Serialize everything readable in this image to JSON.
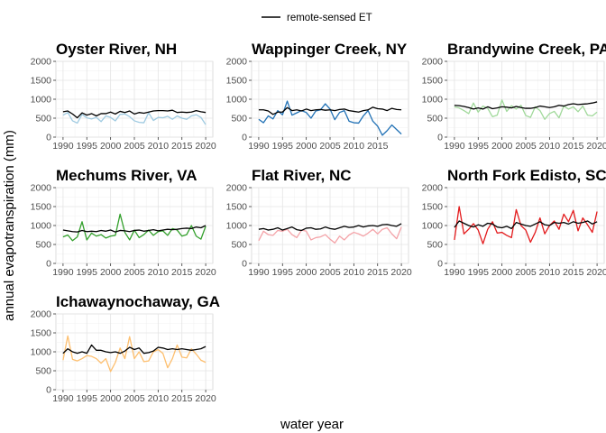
{
  "chart_data": {
    "type": "line",
    "legend": {
      "label": "remote-sensed ET",
      "color": "#000000",
      "placement": "top"
    },
    "xlabel": "water year",
    "ylabel": "annual evapotranspiration (mm)",
    "ylim": [
      0,
      2000
    ],
    "yticks": [
      0,
      500,
      1000,
      1500,
      2000
    ],
    "grid": true,
    "panels": [
      {
        "title": "Oyster River, NH",
        "xlim": [
          1988.5,
          2021.5
        ],
        "xticks": [
          1990,
          1995,
          2000,
          2005,
          2010,
          2015,
          2020
        ],
        "tick_labels": [
          "1990",
          "1995",
          "2000",
          "2005",
          "2010",
          "2015",
          "2020"
        ],
        "color": "#9ecae1",
        "years": [
          1990,
          1991,
          1992,
          1993,
          1994,
          1995,
          1996,
          1997,
          1998,
          1999,
          2000,
          2001,
          2002,
          2003,
          2004,
          2005,
          2006,
          2007,
          2008,
          2009,
          2010,
          2011,
          2012,
          2013,
          2014,
          2015,
          2016,
          2017,
          2018,
          2019,
          2020
        ],
        "observed": [
          580,
          650,
          430,
          370,
          600,
          510,
          480,
          520,
          410,
          560,
          520,
          430,
          600,
          610,
          540,
          430,
          390,
          380,
          640,
          440,
          520,
          510,
          550,
          470,
          560,
          500,
          470,
          560,
          590,
          520,
          330
        ],
        "remote": [
          670,
          690,
          610,
          510,
          640,
          580,
          620,
          560,
          620,
          620,
          660,
          610,
          680,
          650,
          690,
          610,
          650,
          630,
          660,
          690,
          700,
          700,
          690,
          710,
          650,
          660,
          650,
          660,
          700,
          670,
          650
        ]
      },
      {
        "title": "Wappinger Creek, NY",
        "xlim": [
          1988.5,
          2021.5
        ],
        "xticks": [
          1990,
          1995,
          2000,
          2005,
          2010,
          2015
        ],
        "tick_labels": [
          "1990",
          "1995",
          "2000",
          "2005",
          "2010",
          "2015"
        ],
        "color": "#2171b5",
        "years": [
          1990,
          1991,
          1992,
          1993,
          1994,
          1995,
          1996,
          1997,
          1998,
          1999,
          2000,
          2001,
          2002,
          2003,
          2004,
          2005,
          2006,
          2007,
          2008,
          2009,
          2010,
          2011,
          2012,
          2013,
          2014,
          2015,
          2016,
          2017,
          2018,
          2019,
          2020
        ],
        "observed": [
          470,
          380,
          560,
          480,
          700,
          590,
          950,
          580,
          640,
          700,
          650,
          500,
          690,
          720,
          880,
          740,
          460,
          650,
          700,
          420,
          380,
          370,
          560,
          700,
          420,
          290,
          50,
          170,
          320,
          200,
          80
        ],
        "remote": [
          720,
          720,
          690,
          600,
          660,
          660,
          780,
          700,
          720,
          690,
          740,
          700,
          720,
          730,
          710,
          720,
          700,
          730,
          740,
          700,
          680,
          660,
          700,
          720,
          790,
          750,
          740,
          700,
          760,
          730,
          720
        ]
      },
      {
        "title": "Brandywine Creek, PA",
        "xlim": [
          1988.5,
          2021.5
        ],
        "xticks": [
          1990,
          1995,
          2000,
          2005,
          2010,
          2015,
          2020
        ],
        "tick_labels": [
          "1990",
          "1995",
          "2000",
          "2005",
          "2010",
          "2015",
          "2020"
        ],
        "color": "#a1d99b",
        "years": [
          1990,
          1991,
          1992,
          1993,
          1994,
          1995,
          1996,
          1997,
          1998,
          1999,
          2000,
          2001,
          2002,
          2003,
          2004,
          2005,
          2006,
          2007,
          2008,
          2009,
          2010,
          2011,
          2012,
          2013,
          2014,
          2015,
          2016,
          2017,
          2018,
          2019,
          2020
        ],
        "observed": [
          800,
          770,
          700,
          620,
          900,
          660,
          820,
          760,
          540,
          580,
          980,
          680,
          830,
          740,
          840,
          570,
          520,
          800,
          700,
          470,
          620,
          680,
          510,
          820,
          740,
          800,
          670,
          820,
          580,
          560,
          660
        ],
        "remote": [
          840,
          830,
          810,
          780,
          740,
          770,
          740,
          800,
          750,
          770,
          800,
          790,
          770,
          810,
          780,
          760,
          760,
          780,
          820,
          800,
          780,
          800,
          840,
          820,
          860,
          880,
          860,
          870,
          880,
          900,
          930
        ]
      },
      {
        "title": "Mechums River, VA",
        "xlim": [
          1988.5,
          2021.5
        ],
        "xticks": [
          1990,
          1995,
          2000,
          2005,
          2010,
          2015,
          2020
        ],
        "tick_labels": [
          "1990",
          "1995",
          "2000",
          "2005",
          "2010",
          "2015",
          "2020"
        ],
        "color": "#33a02c",
        "years": [
          1990,
          1991,
          1992,
          1993,
          1994,
          1995,
          1996,
          1997,
          1998,
          1999,
          2000,
          2001,
          2002,
          2003,
          2004,
          2005,
          2006,
          2007,
          2008,
          2009,
          2010,
          2011,
          2012,
          2013,
          2014,
          2015,
          2016,
          2017,
          2018,
          2019,
          2020
        ],
        "observed": [
          700,
          750,
          600,
          700,
          1100,
          620,
          800,
          720,
          760,
          670,
          720,
          740,
          1300,
          820,
          620,
          880,
          680,
          760,
          880,
          740,
          840,
          860,
          740,
          920,
          880,
          720,
          760,
          1000,
          720,
          640,
          980
        ],
        "remote": [
          880,
          860,
          840,
          830,
          870,
          840,
          850,
          840,
          870,
          850,
          880,
          830,
          870,
          860,
          840,
          870,
          880,
          850,
          870,
          890,
          860,
          880,
          900,
          890,
          900,
          920,
          930,
          920,
          960,
          940,
          1000
        ]
      },
      {
        "title": "Flat River, NC",
        "xlim": [
          1988.5,
          2021.5
        ],
        "xticks": [
          1990,
          1995,
          2000,
          2005,
          2010,
          2015,
          2020
        ],
        "tick_labels": [
          "1990",
          "1995",
          "2000",
          "2005",
          "2010",
          "2015",
          "2020"
        ],
        "color": "#f4a3a8",
        "years": [
          1990,
          1991,
          1992,
          1993,
          1994,
          1995,
          1996,
          1997,
          1998,
          1999,
          2000,
          2001,
          2002,
          2003,
          2004,
          2005,
          2006,
          2007,
          2008,
          2009,
          2010,
          2011,
          2012,
          2013,
          2014,
          2015,
          2016,
          2017,
          2018,
          2019,
          2020
        ],
        "observed": [
          600,
          850,
          760,
          740,
          870,
          850,
          900,
          760,
          680,
          880,
          850,
          620,
          680,
          700,
          760,
          640,
          540,
          720,
          620,
          750,
          820,
          780,
          720,
          800,
          900,
          780,
          900,
          940,
          780,
          650,
          960
        ],
        "remote": [
          900,
          920,
          880,
          900,
          940,
          880,
          920,
          960,
          890,
          870,
          930,
          940,
          900,
          910,
          960,
          920,
          900,
          940,
          980,
          950,
          960,
          1000,
          960,
          990,
          1000,
          980,
          1020,
          1030,
          1000,
          980,
          1050
        ]
      },
      {
        "title": "North Fork Edisto, SC",
        "xlim": [
          1988.5,
          2021.5
        ],
        "xticks": [
          1990,
          1995,
          2000,
          2005,
          2010,
          2015,
          2020
        ],
        "tick_labels": [
          "1990",
          "1995",
          "2000",
          "2005",
          "2010",
          "2015",
          "2020"
        ],
        "color": "#e31a1c",
        "years": [
          1990,
          1991,
          1992,
          1993,
          1994,
          1995,
          1996,
          1997,
          1998,
          1999,
          2000,
          2001,
          2002,
          2003,
          2004,
          2005,
          2006,
          2007,
          2008,
          2009,
          2010,
          2011,
          2012,
          2013,
          2014,
          2015,
          2016,
          2017,
          2018,
          2019,
          2020
        ],
        "observed": [
          620,
          1500,
          780,
          900,
          1050,
          880,
          520,
          900,
          1100,
          800,
          820,
          740,
          680,
          1420,
          1000,
          880,
          560,
          820,
          1200,
          780,
          1000,
          1120,
          900,
          1300,
          1100,
          1400,
          860,
          1200,
          1020,
          820,
          1370
        ],
        "remote": [
          950,
          1120,
          1060,
          1000,
          960,
          1020,
          980,
          1060,
          1040,
          960,
          940,
          980,
          920,
          1080,
          1040,
          1000,
          980,
          1040,
          1100,
          1020,
          1000,
          1080,
          1060,
          1080,
          1040,
          1100,
          1060,
          1080,
          1120,
          1040,
          1100
        ]
      },
      {
        "title": "Ichawaynochaway, GA",
        "xlim": [
          1988.5,
          2021.5
        ],
        "xticks": [
          1990,
          1995,
          2000,
          2005,
          2010,
          2015,
          2020
        ],
        "tick_labels": [
          "1990",
          "1995",
          "2000",
          "2005",
          "2010",
          "2015",
          "2020"
        ],
        "color": "#fdbf6f",
        "years": [
          1990,
          1991,
          1992,
          1993,
          1994,
          1995,
          1996,
          1997,
          1998,
          1999,
          2000,
          2001,
          2002,
          2003,
          2004,
          2005,
          2006,
          2007,
          2008,
          2009,
          2010,
          2011,
          2012,
          2013,
          2014,
          2015,
          2016,
          2017,
          2018,
          2019,
          2020
        ],
        "observed": [
          780,
          1420,
          800,
          760,
          820,
          900,
          880,
          820,
          700,
          820,
          480,
          720,
          1100,
          820,
          1400,
          820,
          1000,
          740,
          760,
          1000,
          1060,
          960,
          580,
          820,
          1180,
          860,
          840,
          1080,
          940,
          780,
          720
        ],
        "remote": [
          960,
          1080,
          1000,
          960,
          1000,
          960,
          1180,
          1040,
          1040,
          1000,
          980,
          1000,
          960,
          1020,
          1120,
          1060,
          1100,
          960,
          980,
          1020,
          1120,
          1100,
          1060,
          1080,
          1060,
          1080,
          1060,
          1040,
          1060,
          1080,
          1140
        ]
      }
    ]
  }
}
